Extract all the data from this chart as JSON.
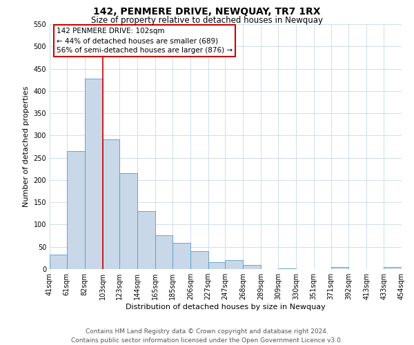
{
  "title": "142, PENMERE DRIVE, NEWQUAY, TR7 1RX",
  "subtitle": "Size of property relative to detached houses in Newquay",
  "xlabel": "Distribution of detached houses by size in Newquay",
  "ylabel": "Number of detached properties",
  "bar_edges": [
    41,
    61,
    82,
    103,
    123,
    144,
    165,
    185,
    206,
    227,
    247,
    268,
    289,
    309,
    330,
    351,
    371,
    392,
    413,
    433,
    454
  ],
  "bar_heights": [
    32,
    265,
    428,
    291,
    215,
    130,
    76,
    59,
    40,
    15,
    20,
    10,
    0,
    2,
    0,
    0,
    5,
    0,
    0,
    5
  ],
  "bar_color": "#c8d8e8",
  "bar_edge_color": "#5599cc",
  "vline_x": 103,
  "vline_color": "#cc0000",
  "ylim": [
    0,
    550
  ],
  "yticks": [
    0,
    50,
    100,
    150,
    200,
    250,
    300,
    350,
    400,
    450,
    500,
    550
  ],
  "xtick_labels": [
    "41sqm",
    "61sqm",
    "82sqm",
    "103sqm",
    "123sqm",
    "144sqm",
    "165sqm",
    "185sqm",
    "206sqm",
    "227sqm",
    "247sqm",
    "268sqm",
    "289sqm",
    "309sqm",
    "330sqm",
    "351sqm",
    "371sqm",
    "392sqm",
    "413sqm",
    "433sqm",
    "454sqm"
  ],
  "annotation_title": "142 PENMERE DRIVE: 102sqm",
  "annotation_line1": "← 44% of detached houses are smaller (689)",
  "annotation_line2": "56% of semi-detached houses are larger (876) →",
  "annotation_box_color": "#ffffff",
  "annotation_box_edge_color": "#cc0000",
  "footer1": "Contains HM Land Registry data © Crown copyright and database right 2024.",
  "footer2": "Contains public sector information licensed under the Open Government Licence v3.0.",
  "background_color": "#ffffff",
  "grid_color": "#c8d8ea",
  "title_fontsize": 10,
  "subtitle_fontsize": 8.5,
  "axis_label_fontsize": 8,
  "tick_fontsize": 7,
  "annotation_fontsize": 7.5,
  "footer_fontsize": 6.5
}
